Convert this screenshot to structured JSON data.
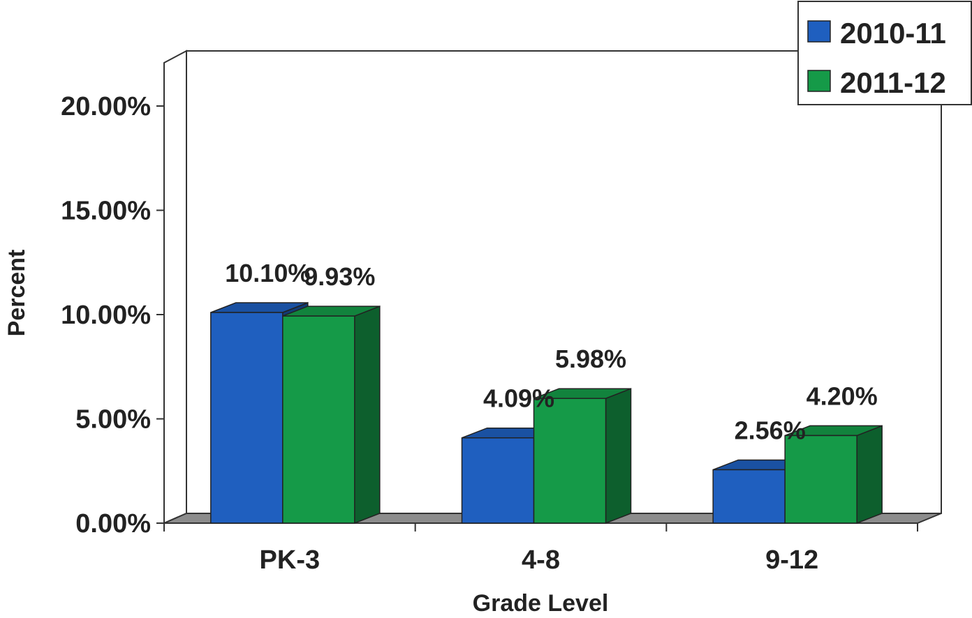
{
  "chart_data": {
    "type": "bar",
    "title": "",
    "xlabel": "Grade Level",
    "ylabel": "Percent",
    "categories": [
      "PK-3",
      "4-8",
      "9-12"
    ],
    "series": [
      {
        "name": "2010-11",
        "values": [
          10.1,
          4.09,
          2.56
        ],
        "labels": [
          "10.10%",
          "4.09%",
          "2.56%"
        ],
        "color": "#1f5fbf"
      },
      {
        "name": "2011-12",
        "values": [
          9.93,
          5.98,
          4.2
        ],
        "labels": [
          "9.93%",
          "5.98%",
          "4.20%"
        ],
        "color": "#159a48"
      }
    ],
    "ylim": [
      0,
      20
    ],
    "yticks": [
      0,
      5,
      10,
      15,
      20
    ],
    "ytick_labels": [
      "0.00%",
      "5.00%",
      "10.00%",
      "15.00%",
      "20.00%"
    ],
    "grid": false,
    "legend_position": "top-right",
    "style": "3d-clustered-column"
  }
}
